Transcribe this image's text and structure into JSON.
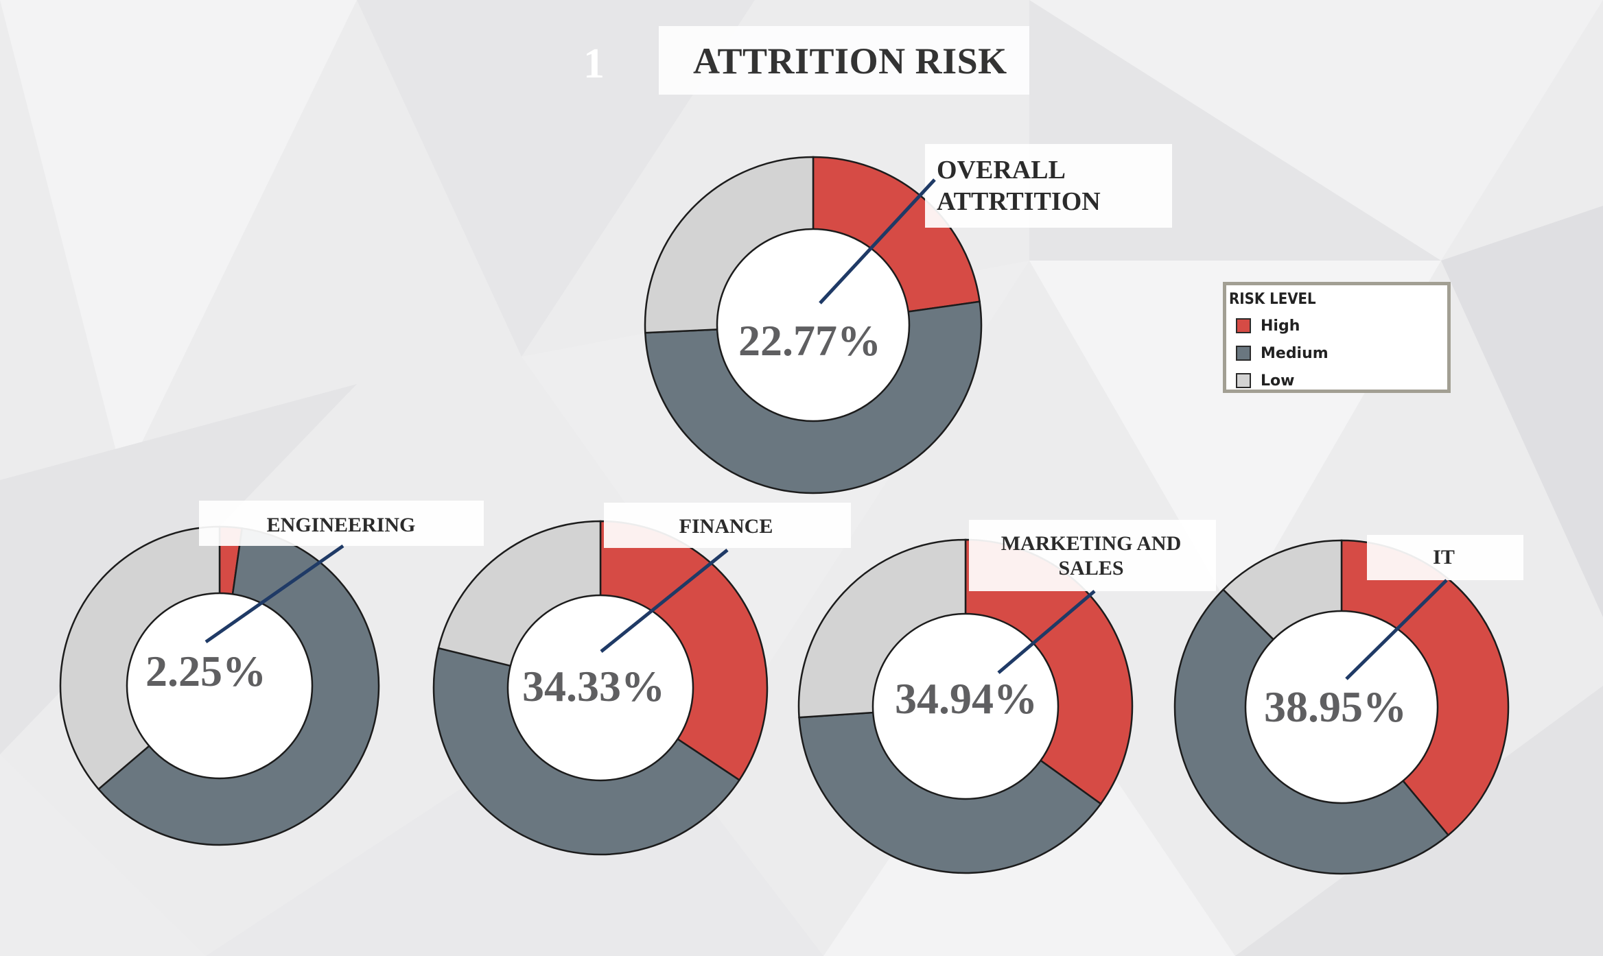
{
  "page": {
    "number": "1",
    "title": "ATTRITION RISK"
  },
  "legend": {
    "title": "RISK LEVEL",
    "items": [
      {
        "label": "High",
        "color": "#d64b45"
      },
      {
        "label": "Medium",
        "color": "#6a7780"
      },
      {
        "label": "Low",
        "color": "#d3d3d3"
      }
    ]
  },
  "chart_data": [
    {
      "type": "pie",
      "donut": true,
      "label_lines": [
        "OVERALL",
        "ATTRTITION"
      ],
      "center_label": "22.77%",
      "series": [
        {
          "name": "High",
          "value": 22.77
        },
        {
          "name": "Medium",
          "value": 51.5
        },
        {
          "name": "Low",
          "value": 25.73
        }
      ]
    },
    {
      "type": "pie",
      "donut": true,
      "label_lines": [
        "ENGINEERING"
      ],
      "center_label": "2.25%",
      "series": [
        {
          "name": "High",
          "value": 2.25
        },
        {
          "name": "Medium",
          "value": 61.5
        },
        {
          "name": "Low",
          "value": 36.25
        }
      ]
    },
    {
      "type": "pie",
      "donut": true,
      "label_lines": [
        "FINANCE"
      ],
      "center_label": "34.33%",
      "series": [
        {
          "name": "High",
          "value": 34.33
        },
        {
          "name": "Medium",
          "value": 44.5
        },
        {
          "name": "Low",
          "value": 21.17
        }
      ]
    },
    {
      "type": "pie",
      "donut": true,
      "label_lines": [
        "MARKETING AND",
        "SALES"
      ],
      "center_label": "34.94%",
      "series": [
        {
          "name": "High",
          "value": 34.94
        },
        {
          "name": "Medium",
          "value": 39.0
        },
        {
          "name": "Low",
          "value": 26.06
        }
      ]
    },
    {
      "type": "pie",
      "donut": true,
      "label_lines": [
        "IT"
      ],
      "center_label": "38.95%",
      "series": [
        {
          "name": "High",
          "value": 38.95
        },
        {
          "name": "Medium",
          "value": 48.5
        },
        {
          "name": "Low",
          "value": 12.55
        }
      ]
    }
  ]
}
